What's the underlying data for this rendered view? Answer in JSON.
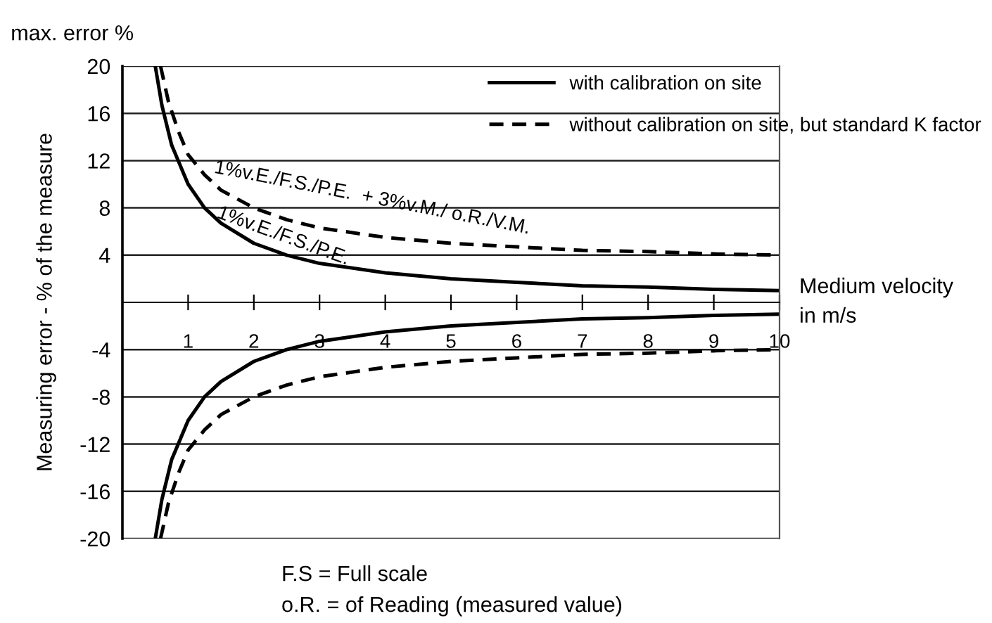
{
  "chart_data": {
    "type": "line",
    "title": "max. error %",
    "xlabel": "Medium velocity\nin m/s",
    "ylabel": "Measuring error - % of the measure",
    "xlim": [
      0,
      10
    ],
    "ylim": [
      -20,
      20
    ],
    "xticks": [
      1,
      2,
      3,
      4,
      5,
      6,
      7,
      8,
      9,
      10
    ],
    "yticks": [
      -20,
      -16,
      -12,
      -8,
      -4,
      4,
      8,
      12,
      16,
      20
    ],
    "grid": "y",
    "legend": "top right",
    "marker": "none",
    "series": [
      {
        "name": "with calibration on site",
        "color": "#000000",
        "line_style": "solid",
        "x": [
          0.5,
          0.6,
          0.75,
          1,
          1.25,
          1.5,
          2,
          2.5,
          3,
          4,
          5,
          6,
          7,
          8,
          9,
          10
        ],
        "values": [
          20,
          16.7,
          13.3,
          10,
          8,
          6.7,
          5,
          4,
          3.3,
          2.5,
          2,
          1.7,
          1.4,
          1.3,
          1.1,
          1
        ]
      },
      {
        "name": "without calibration on site, but standard K factor",
        "color": "#000000",
        "line_style": "dashed",
        "x": [
          0.58,
          0.7,
          0.85,
          1,
          1.25,
          1.5,
          2,
          2.5,
          3,
          4,
          5,
          6,
          7,
          8,
          9,
          10
        ],
        "values": [
          20,
          17,
          14.5,
          12.5,
          10.8,
          9.5,
          8,
          7,
          6.3,
          5.5,
          5,
          4.7,
          4.4,
          4.3,
          4.1,
          4
        ]
      },
      {
        "color": "#000000",
        "line_style": "solid",
        "x": [
          0.5,
          0.6,
          0.75,
          1,
          1.25,
          1.5,
          2,
          2.5,
          3,
          4,
          5,
          6,
          7,
          8,
          9,
          10
        ],
        "values": [
          -20,
          -16.7,
          -13.3,
          -10,
          -8,
          -6.7,
          -5,
          -4,
          -3.3,
          -2.5,
          -2,
          -1.7,
          -1.4,
          -1.3,
          -1.1,
          -1
        ]
      },
      {
        "color": "#000000",
        "line_style": "dashed",
        "x": [
          0.58,
          0.7,
          0.85,
          1,
          1.25,
          1.5,
          2,
          2.5,
          3,
          4,
          5,
          6,
          7,
          8,
          9,
          10
        ],
        "values": [
          -20,
          -17,
          -14.5,
          -12.5,
          -10.8,
          -9.5,
          -8,
          -7,
          -6.3,
          -5.5,
          -5,
          -4.7,
          -4.4,
          -4.3,
          -4.1,
          -4
        ]
      }
    ],
    "annotations": [
      "1%v.E./F.S./P.E.  + 3%v.M./ o.R./V.M.",
      "1%v.E./F.S./P.E.",
      "F.S = Full scale",
      "o.R. = of Reading (measured value)"
    ]
  }
}
